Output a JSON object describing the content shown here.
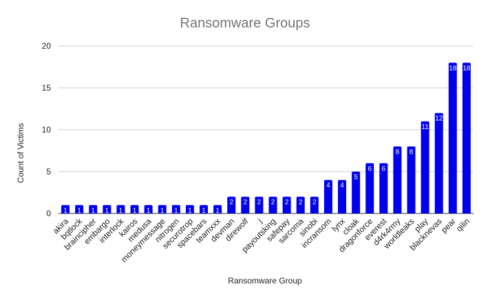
{
  "chart_data": {
    "type": "bar",
    "title": "Ransomware Groups",
    "xlabel": "Ransomware Group",
    "ylabel": "Count of Victims",
    "ylim": [
      0,
      20
    ],
    "yticks": [
      0,
      5,
      10,
      15,
      20
    ],
    "grid": "horizontal",
    "legend": "none",
    "bar_color": "#0000ee",
    "categories": [
      "akira",
      "bqtlock",
      "braincipher",
      "embargo",
      "interlock",
      "kairos",
      "medusa",
      "moneymessage",
      "nitrogen",
      "securotrop",
      "spacebars",
      "teamxxx",
      "devman",
      "direwolf",
      "j",
      "payoutsking",
      "safepay",
      "sarcoma",
      "sinobi",
      "incransom",
      "lynx",
      "cloak",
      "dragonforce",
      "everest",
      "d4rk4rmy",
      "worldleaks",
      "play",
      "blacknevas",
      "pear",
      "qilin"
    ],
    "values": [
      1,
      1,
      1,
      1,
      1,
      1,
      1,
      1,
      1,
      1,
      1,
      1,
      2,
      2,
      2,
      2,
      2,
      2,
      2,
      4,
      4,
      5,
      6,
      6,
      8,
      8,
      11,
      12,
      18,
      18
    ]
  }
}
